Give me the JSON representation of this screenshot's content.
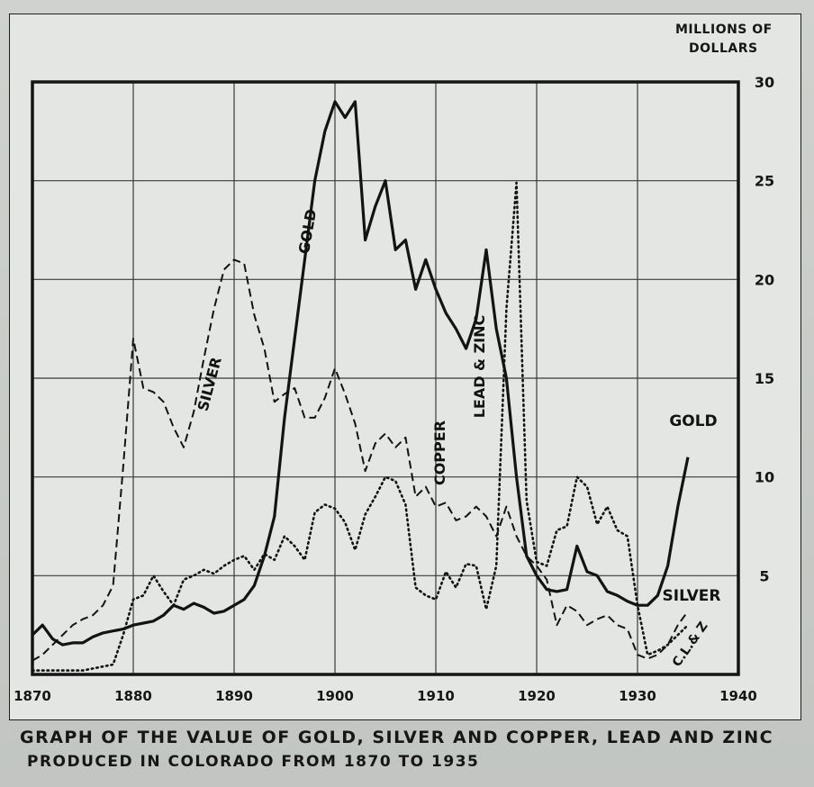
{
  "caption": {
    "line1": "Graph of the value of gold, silver and copper, lead and zinc",
    "line2": "produced in Colorado from 1870 to 1935"
  },
  "chart_data": {
    "type": "line",
    "title": "Graph of the value of gold, silver and copper, lead and zinc produced in Colorado from 1870 to 1935",
    "xlabel": "",
    "ylabel_lines": [
      "MILLIONS OF",
      "DOLLARS"
    ],
    "xlim": [
      1870,
      1940
    ],
    "ylim": [
      0,
      30
    ],
    "x_ticks": [
      1870,
      1880,
      1890,
      1900,
      1910,
      1920,
      1930,
      1940
    ],
    "y_ticks": [
      5,
      10,
      15,
      20,
      25,
      30
    ],
    "grid": true,
    "series": [
      {
        "name": "GOLD",
        "style": "solid",
        "labels": [
          "GOLD",
          "GOLD"
        ],
        "x": [
          1870,
          1871,
          1872,
          1873,
          1874,
          1875,
          1876,
          1877,
          1878,
          1879,
          1880,
          1881,
          1882,
          1883,
          1884,
          1885,
          1886,
          1887,
          1888,
          1889,
          1890,
          1891,
          1892,
          1893,
          1894,
          1895,
          1896,
          1897,
          1898,
          1899,
          1900,
          1901,
          1902,
          1903,
          1904,
          1905,
          1906,
          1907,
          1908,
          1909,
          1910,
          1911,
          1912,
          1913,
          1914,
          1915,
          1916,
          1917,
          1918,
          1919,
          1920,
          1921,
          1922,
          1923,
          1924,
          1925,
          1926,
          1927,
          1928,
          1929,
          1930,
          1931,
          1932,
          1933,
          1934,
          1935
        ],
        "values": [
          2.0,
          2.5,
          1.8,
          1.5,
          1.6,
          1.6,
          1.9,
          2.1,
          2.2,
          2.3,
          2.5,
          2.6,
          2.7,
          3.0,
          3.5,
          3.3,
          3.6,
          3.4,
          3.1,
          3.2,
          3.5,
          3.8,
          4.5,
          6.0,
          8.0,
          13.0,
          17.0,
          21.0,
          25.0,
          27.5,
          29.0,
          28.2,
          29.0,
          22.0,
          23.7,
          25.0,
          21.5,
          22.0,
          19.5,
          21.0,
          19.5,
          18.3,
          17.5,
          16.5,
          18.0,
          21.5,
          17.5,
          15.0,
          10.0,
          6.0,
          5.0,
          4.3,
          4.2,
          4.3,
          6.5,
          5.2,
          5.0,
          4.2,
          4.0,
          3.7,
          3.5,
          3.5,
          4.0,
          5.5,
          8.5,
          11.0
        ]
      },
      {
        "name": "SILVER",
        "style": "dashed",
        "labels": [
          "SILVER",
          "SILVER"
        ],
        "x": [
          1870,
          1871,
          1872,
          1873,
          1874,
          1875,
          1876,
          1877,
          1878,
          1879,
          1880,
          1881,
          1882,
          1883,
          1884,
          1885,
          1886,
          1887,
          1888,
          1889,
          1890,
          1891,
          1892,
          1893,
          1894,
          1895,
          1896,
          1897,
          1898,
          1899,
          1900,
          1901,
          1902,
          1903,
          1904,
          1905,
          1906,
          1907,
          1908,
          1909,
          1910,
          1911,
          1912,
          1913,
          1914,
          1915,
          1916,
          1917,
          1918,
          1919,
          1920,
          1921,
          1922,
          1923,
          1924,
          1925,
          1926,
          1927,
          1928,
          1929,
          1930,
          1931,
          1932,
          1933,
          1934,
          1935
        ],
        "values": [
          0.7,
          1.0,
          1.5,
          2.0,
          2.5,
          2.8,
          3.0,
          3.5,
          4.5,
          10.5,
          17.0,
          14.5,
          14.3,
          13.8,
          12.5,
          11.5,
          13.3,
          16.0,
          18.5,
          20.5,
          21.0,
          20.8,
          18.2,
          16.5,
          13.8,
          14.2,
          14.5,
          13.0,
          13.0,
          14.0,
          15.5,
          14.2,
          12.7,
          10.3,
          11.7,
          12.2,
          11.5,
          12.0,
          9.0,
          9.5,
          8.5,
          8.7,
          7.8,
          8.0,
          8.5,
          8.0,
          7.0,
          8.5,
          7.0,
          6.0,
          5.5,
          4.8,
          2.5,
          3.5,
          3.2,
          2.5,
          2.8,
          3.0,
          2.5,
          2.3,
          1.0,
          0.8,
          1.0,
          1.5,
          2.5,
          3.2
        ]
      },
      {
        "name": "COPPER, LEAD & ZINC",
        "style": "dotted",
        "labels": [
          "COPPER",
          "LEAD & ZINC",
          "C.L.& Z"
        ],
        "x": [
          1870,
          1871,
          1872,
          1873,
          1874,
          1875,
          1876,
          1877,
          1878,
          1879,
          1880,
          1881,
          1882,
          1883,
          1884,
          1885,
          1886,
          1887,
          1888,
          1889,
          1890,
          1891,
          1892,
          1893,
          1894,
          1895,
          1896,
          1897,
          1898,
          1899,
          1900,
          1901,
          1902,
          1903,
          1904,
          1905,
          1906,
          1907,
          1908,
          1909,
          1910,
          1911,
          1912,
          1913,
          1914,
          1915,
          1916,
          1917,
          1918,
          1919,
          1920,
          1921,
          1922,
          1923,
          1924,
          1925,
          1926,
          1927,
          1928,
          1929,
          1930,
          1931,
          1932,
          1933,
          1934,
          1935
        ],
        "values": [
          0.2,
          0.2,
          0.2,
          0.2,
          0.2,
          0.2,
          0.3,
          0.4,
          0.5,
          2.0,
          3.8,
          4.0,
          5.0,
          4.2,
          3.5,
          4.8,
          5.0,
          5.3,
          5.1,
          5.5,
          5.8,
          6.0,
          5.3,
          6.1,
          5.8,
          7.0,
          6.5,
          5.8,
          8.2,
          8.6,
          8.4,
          7.7,
          6.3,
          8.1,
          9.0,
          10.0,
          9.8,
          8.6,
          4.4,
          4.0,
          3.8,
          5.2,
          4.4,
          5.6,
          5.5,
          3.3,
          5.5,
          18.5,
          24.9,
          8.8,
          5.7,
          5.5,
          7.3,
          7.5,
          10.0,
          9.5,
          7.6,
          8.5,
          7.3,
          7.0,
          3.5,
          1.0,
          1.2,
          1.5,
          2.0,
          2.5
        ]
      }
    ]
  }
}
